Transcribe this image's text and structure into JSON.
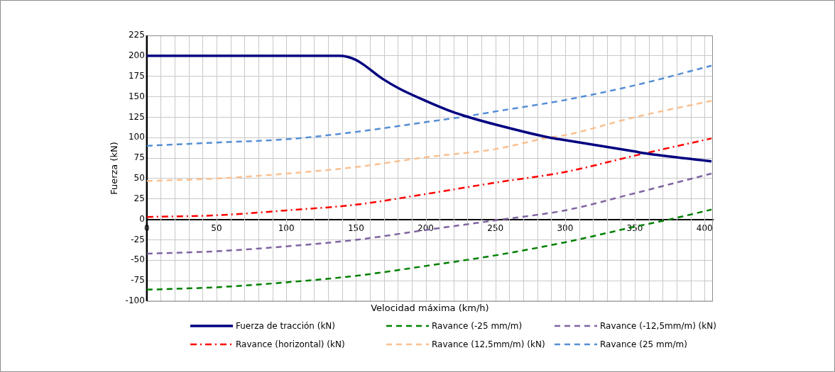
{
  "chart_data": {
    "type": "line",
    "xlabel": "Velocidad máxima (km/h)",
    "ylabel": "Fuerza (kN)",
    "xlim": [
      0,
      406
    ],
    "ylim": [
      -100,
      225
    ],
    "xticks": [
      0,
      {
        "value": 10,
        "label": null
      },
      {
        "value": 20,
        "label": null
      },
      {
        "value": 30,
        "label": null
      },
      {
        "value": 40,
        "label": null
      },
      50,
      {
        "value": 60,
        "label": null
      },
      {
        "value": 70,
        "label": null
      },
      {
        "value": 80,
        "label": null
      },
      {
        "value": 90,
        "label": null
      },
      100,
      {
        "value": 110,
        "label": null
      },
      {
        "value": 120,
        "label": null
      },
      {
        "value": 130,
        "label": null
      },
      {
        "value": 140,
        "label": null
      },
      150,
      {
        "value": 160,
        "label": null
      },
      {
        "value": 170,
        "label": null
      },
      {
        "value": 180,
        "label": null
      },
      {
        "value": 190,
        "label": null
      },
      200,
      {
        "value": 210,
        "label": null
      },
      {
        "value": 220,
        "label": null
      },
      {
        "value": 230,
        "label": null
      },
      {
        "value": 240,
        "label": null
      },
      250,
      {
        "value": 260,
        "label": null
      },
      {
        "value": 270,
        "label": null
      },
      {
        "value": 280,
        "label": null
      },
      {
        "value": 290,
        "label": null
      },
      300,
      {
        "value": 310,
        "label": null
      },
      {
        "value": 320,
        "label": null
      },
      {
        "value": 330,
        "label": null
      },
      {
        "value": 340,
        "label": null
      },
      350,
      {
        "value": 360,
        "label": null
      },
      {
        "value": 370,
        "label": null
      },
      {
        "value": 380,
        "label": null
      },
      {
        "value": 390,
        "label": null
      },
      400
    ],
    "yticks": [
      -100,
      -75,
      -50,
      -25,
      0,
      25,
      50,
      75,
      100,
      125,
      150,
      175,
      200,
      225
    ],
    "grid": true,
    "legend": "bottom",
    "marker": "none",
    "series": [
      {
        "name": "Fuerza de tracción (kN)",
        "color": "#000080",
        "line_style": "solid",
        "x": [
          0,
          50,
          100,
          138,
          150,
          169,
          181,
          200,
          220,
          229,
          250,
          289,
          300,
          350,
          357,
          405
        ],
        "values": [
          200,
          200,
          200,
          200,
          195,
          172,
          160,
          145,
          131,
          126,
          116,
          100,
          97,
          83,
          81,
          71
        ]
      },
      {
        "name": "Ravance (-25 mm/m)",
        "color": "#008000",
        "line_style": "dashed",
        "x": [
          0,
          50,
          100,
          150,
          200,
          250,
          300,
          350,
          375,
          405
        ],
        "values": [
          -86,
          -83,
          -77,
          -69,
          -57,
          -44,
          -28,
          -9,
          0,
          12
        ]
      },
      {
        "name": "Ravance (-12,5mm/m) (kN)",
        "color": "#8064a2",
        "line_style": "dashed",
        "x": [
          0,
          50,
          100,
          150,
          200,
          255,
          300,
          350,
          405
        ],
        "values": [
          -42,
          -39,
          -33,
          -25,
          -13,
          0,
          11,
          32,
          56
        ]
      },
      {
        "name": "Ravance (horizontal) (kN)",
        "color": "#ff0000",
        "line_style": "dashdot",
        "x": [
          0,
          50,
          100,
          150,
          200,
          250,
          300,
          350,
          405
        ],
        "values": [
          3,
          5,
          11,
          18,
          31,
          45,
          58,
          78,
          99
        ]
      },
      {
        "name": "Ravance (12,5mm/m) (kN)",
        "color": "#fac090",
        "line_style": "dashed",
        "x": [
          0,
          50,
          100,
          150,
          200,
          250,
          288,
          300,
          350,
          405
        ],
        "values": [
          47,
          50,
          56,
          64,
          76,
          86,
          100,
          103,
          125,
          145
        ]
      },
      {
        "name": "Ravance (25 mm/m)",
        "color": "#558ed5",
        "line_style": "dashed",
        "x": [
          0,
          50,
          100,
          150,
          200,
          229,
          250,
          300,
          350,
          405
        ],
        "values": [
          90,
          94,
          98,
          107,
          119,
          126,
          132,
          146,
          164,
          188
        ]
      }
    ]
  }
}
